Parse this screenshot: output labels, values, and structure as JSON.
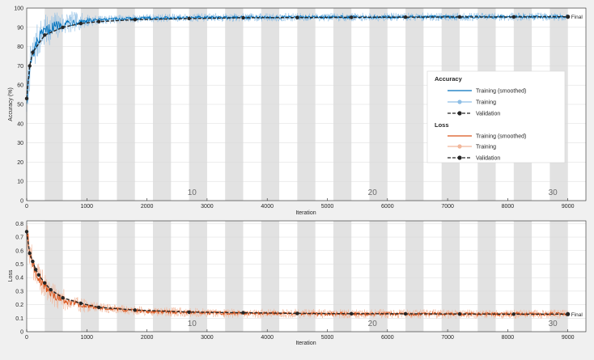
{
  "chart_data": [
    {
      "id": "accuracy",
      "type": "line",
      "ylabel": "Accuracy (%)",
      "xlabel": "Iteration",
      "xlim": [
        0,
        9300
      ],
      "ylim": [
        0,
        100
      ],
      "xticks": [
        0,
        1000,
        2000,
        3000,
        4000,
        5000,
        6000,
        7000,
        8000,
        9000
      ],
      "yticks": [
        0,
        10,
        20,
        30,
        40,
        50,
        60,
        70,
        80,
        90,
        100
      ],
      "epoch_labels": [
        {
          "text": "10",
          "x": 2750
        },
        {
          "text": "20",
          "x": 5750
        },
        {
          "text": "30",
          "x": 8750
        }
      ],
      "final_label": "Final",
      "final_value": 95.5,
      "series": [
        {
          "name": "Training (smoothed)",
          "color": "#0072bd",
          "style": "smoothed",
          "x": [
            0,
            50,
            100,
            200,
            300,
            400,
            500,
            700,
            1000,
            1500,
            2000,
            3000,
            4000,
            5000,
            6000,
            7000,
            8000,
            9000
          ],
          "y": [
            52,
            68,
            76,
            84,
            87.5,
            89.5,
            91,
            92.5,
            93.5,
            94.3,
            94.8,
            95.1,
            95.2,
            95.3,
            95.4,
            95.4,
            95.5,
            95.5
          ]
        },
        {
          "name": "Training",
          "color": "#8fbfe6",
          "style": "raw"
        },
        {
          "name": "Validation",
          "color": "#262626",
          "style": "validation",
          "x": [
            0,
            50,
            100,
            300,
            600,
            900,
            1200,
            1800,
            2700,
            3600,
            4500,
            5400,
            6300,
            7200,
            8100,
            9000
          ],
          "y": [
            53,
            70,
            77,
            86,
            90,
            92,
            93,
            94,
            94.6,
            95,
            95.1,
            95.2,
            95.3,
            95.4,
            95.4,
            95.5
          ]
        }
      ]
    },
    {
      "id": "loss",
      "type": "line",
      "ylabel": "Loss",
      "xlabel": "Iteration",
      "xlim": [
        0,
        9300
      ],
      "ylim": [
        0,
        0.82
      ],
      "xticks": [
        0,
        1000,
        2000,
        3000,
        4000,
        5000,
        6000,
        7000,
        8000,
        9000
      ],
      "yticks": [
        0,
        0.1,
        0.2,
        0.3,
        0.4,
        0.5,
        0.6,
        0.7,
        0.8
      ],
      "epoch_labels": [
        {
          "text": "10",
          "x": 2750
        },
        {
          "text": "20",
          "x": 5750
        },
        {
          "text": "30",
          "x": 8750
        }
      ],
      "final_label": "Final",
      "final_value": 0.13,
      "series": [
        {
          "name": "Training (smoothed)",
          "color": "#d95319",
          "style": "smoothed",
          "x": [
            0,
            50,
            100,
            200,
            300,
            400,
            500,
            700,
            1000,
            1500,
            2000,
            3000,
            4000,
            5000,
            6000,
            7000,
            8000,
            9000
          ],
          "y": [
            0.74,
            0.6,
            0.5,
            0.4,
            0.33,
            0.29,
            0.26,
            0.22,
            0.19,
            0.165,
            0.15,
            0.14,
            0.135,
            0.133,
            0.132,
            0.131,
            0.13,
            0.13
          ]
        },
        {
          "name": "Training",
          "color": "#f2b79b",
          "style": "raw"
        },
        {
          "name": "Validation",
          "color": "#262626",
          "style": "validation",
          "x": [
            0,
            50,
            100,
            150,
            200,
            300,
            400,
            600,
            900,
            1200,
            1800,
            2700,
            3600,
            4500,
            5400,
            6300,
            7200,
            8100,
            9000
          ],
          "y": [
            0.74,
            0.58,
            0.52,
            0.46,
            0.42,
            0.36,
            0.31,
            0.25,
            0.21,
            0.18,
            0.16,
            0.145,
            0.14,
            0.135,
            0.133,
            0.132,
            0.131,
            0.13,
            0.13
          ]
        }
      ]
    }
  ],
  "legend": {
    "accuracy_title": "Accuracy",
    "loss_title": "Loss",
    "items": {
      "acc_smoothed": "Training (smoothed)",
      "acc_training": "Training",
      "acc_validation": "Validation",
      "loss_smoothed": "Training (smoothed)",
      "loss_training": "Training",
      "loss_validation": "Validation"
    },
    "colors": {
      "acc_smoothed": "#0072bd",
      "acc_training": "#8fbfe6",
      "loss_smoothed": "#d95319",
      "loss_training": "#f2b79b",
      "validation": "#262626"
    }
  }
}
